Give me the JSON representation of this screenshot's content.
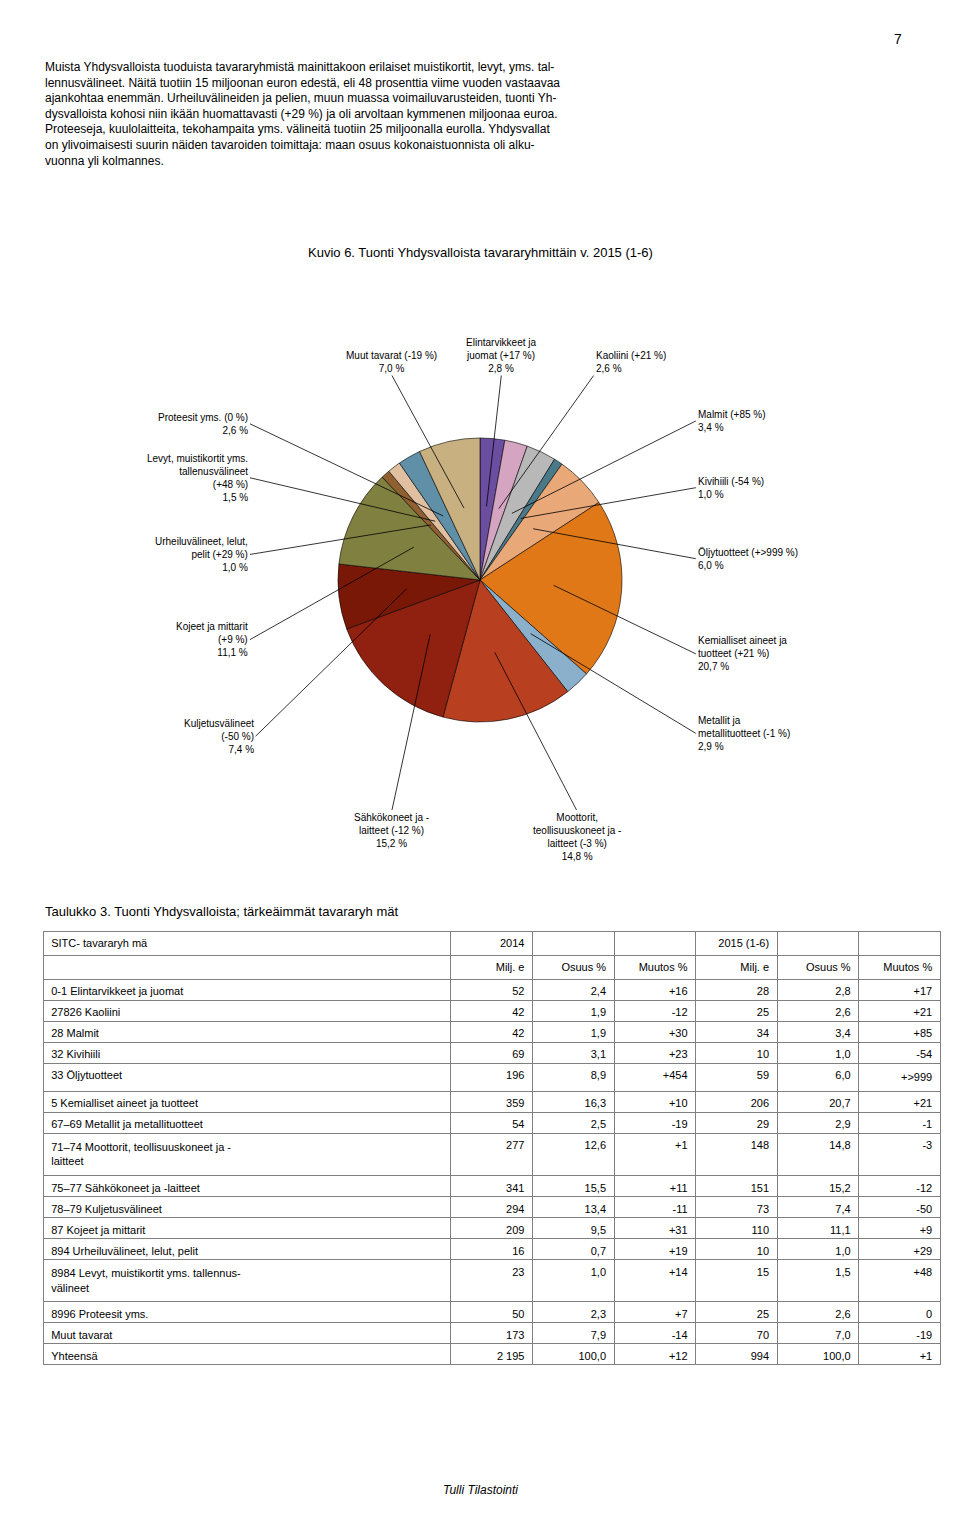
{
  "page_number": "7",
  "body_lines": [
    "Muista Yhdysvalloista tuoduista tavararyhmistä mainittakoon erilaiset muistikortit, levyt, yms. tal-",
    "lennusvälineet. Näitä tuotiin 15 miljoonan euron edestä, eli 48 prosenttia viime vuoden vastaavaa",
    "ajankohtaa enemmän. Urheiluvälineiden ja pelien, muun muassa voimailuvarusteiden, tuonti Yh-",
    "dysvalloista kohosi niin ikään huomattavasti (+29 %) ja oli arvoltaan kymmenen miljoonaa euroa.",
    "Proteeseja, kuulolaitteita, tekohampaita yms. välineitä tuotiin 25 miljoonalla eurolla. Yhdysvallat",
    "on ylivoimaisesti suurin näiden tavaroiden toimittaja: maan osuus kokonaistuonnista oli alku-",
    "vuonna yli kolmannes."
  ],
  "footer": "Tulli Tilastointi",
  "chart_data": [
    {
      "type": "pie",
      "title": "Kuvio 6. Tuonti Yhdysvalloista tavararyhmittäin v. 2015 (1-6)",
      "categories": [
        "Elintarvikkeet ja\njuomat (+17 %)\n2,8 %",
        "Kaoliini (+21 %)\n2,6 %",
        "Malmit (+85 %)\n3,4 %",
        "Kivihiili (-54 %)\n1,0 %",
        "Öljytuotteet (+>999 %)\n6,0 %",
        "Kemialliset aineet ja\ntuotteet (+21 %)\n20,7 %",
        "Metallit ja\nmetallituotteet (-1 %)\n2,9 %",
        "Moottorit,\nteollisuuskoneet ja -\nlaitteet (-3 %)\n14,8 %",
        "Sähkökoneet ja -\nlaitteet (-12 %)\n15,2 %",
        "Kuljetusvälineet\n(-50 %)\n7,4 %",
        "Kojeet ja mittarit\n(+9 %)\n11,1 %",
        "Urheiluvälineet, lelut,\npelit (+29 %)\n1,0 %",
        "Levyt, muistikortit yms.\ntallenusvälineet\n(+48 %)\n1,5 %",
        "Proteesit yms. (0 %)\n2,6 %",
        "Muut tavarat (-19 %)\n7,0 %"
      ],
      "values": [
        2.8,
        2.6,
        3.4,
        1.0,
        6.0,
        20.7,
        2.9,
        14.8,
        15.2,
        7.4,
        11.1,
        1.0,
        1.5,
        2.6,
        7.0
      ],
      "colors": [
        "#6b4ea0",
        "#d4a4c0",
        "#b8b8b8",
        "#4a7a8a",
        "#e8a878",
        "#e07818",
        "#8ab0cc",
        "#b84020",
        "#902010",
        "#7a1808",
        "#808040",
        "#906030",
        "#e0c0a0",
        "#6090a8",
        "#c8b080"
      ]
    },
    {
      "type": "table",
      "title": "Taulukko 3. Tuonti Yhdysvalloista; tärkeäimmät tavararyh mät",
      "header_rows": [
        [
          "SITC- tavararyh mä",
          "2014",
          null,
          null,
          "2015 (1-6)",
          null,
          null
        ],
        [
          null,
          "Milj. e",
          "Osuus %",
          "Muutos %",
          "Milj. e",
          "Osuus %",
          "Muutos %"
        ]
      ],
      "rows": [
        [
          "0-1 Elintarvikkeet ja juomat",
          "52",
          "2,4",
          "+16",
          "28",
          "2,8",
          "+17"
        ],
        [
          "27826 Kaoliini",
          "42",
          "1,9",
          "-12",
          "25",
          "2,6",
          "+21"
        ],
        [
          "28 Malmit",
          "42",
          "1,9",
          "+30",
          "34",
          "3,4",
          "+85"
        ],
        [
          "32 Kivihiili",
          "69",
          "3,1",
          "+23",
          "10",
          "1,0",
          "-54"
        ],
        [
          "33 Öljytuotteet",
          "196",
          "8,9",
          "+454",
          "59",
          "6,0",
          "+>999"
        ],
        [
          "5 Kemialliset aineet ja tuotteet",
          "359",
          "16,3",
          "+10",
          "206",
          "20,7",
          "+21"
        ],
        [
          "67–69 Metallit ja metallituotteet",
          "54",
          "2,5",
          "-19",
          "29",
          "2,9",
          "-1"
        ],
        [
          "71–74 Moottorit, teollisuuskoneet ja -\nlaitteet",
          "277",
          "12,6",
          "+1",
          "148",
          "14,8",
          "-3"
        ],
        [
          "75–77 Sähkökoneet ja -laitteet",
          "341",
          "15,5",
          "+11",
          "151",
          "15,2",
          "-12"
        ],
        [
          "78–79 Kuljetusvälineet",
          "294",
          "13,4",
          "-11",
          "73",
          "7,4",
          "-50"
        ],
        [
          "87 Kojeet ja mittarit",
          "209",
          "9,5",
          "+31",
          "110",
          "11,1",
          "+9"
        ],
        [
          "894 Urheiluvälineet, lelut, pelit",
          "16",
          "0,7",
          "+19",
          "10",
          "1,0",
          "+29"
        ],
        [
          "8984 Levyt, muistikortit yms. tallennus-\nvälineet",
          "23",
          "1,0",
          "+14",
          "15",
          "1,5",
          "+48"
        ],
        [
          "8996 Proteesit yms.",
          "50",
          "2,3",
          "+7",
          "25",
          "2,6",
          "0"
        ],
        [
          "Muut tavarat",
          "173",
          "7,9",
          "-14",
          "70",
          "7,0",
          "-19"
        ],
        [
          "Yhteensä",
          "2 195",
          "100,0",
          "+12",
          "994",
          "100,0",
          "+1"
        ]
      ]
    }
  ]
}
